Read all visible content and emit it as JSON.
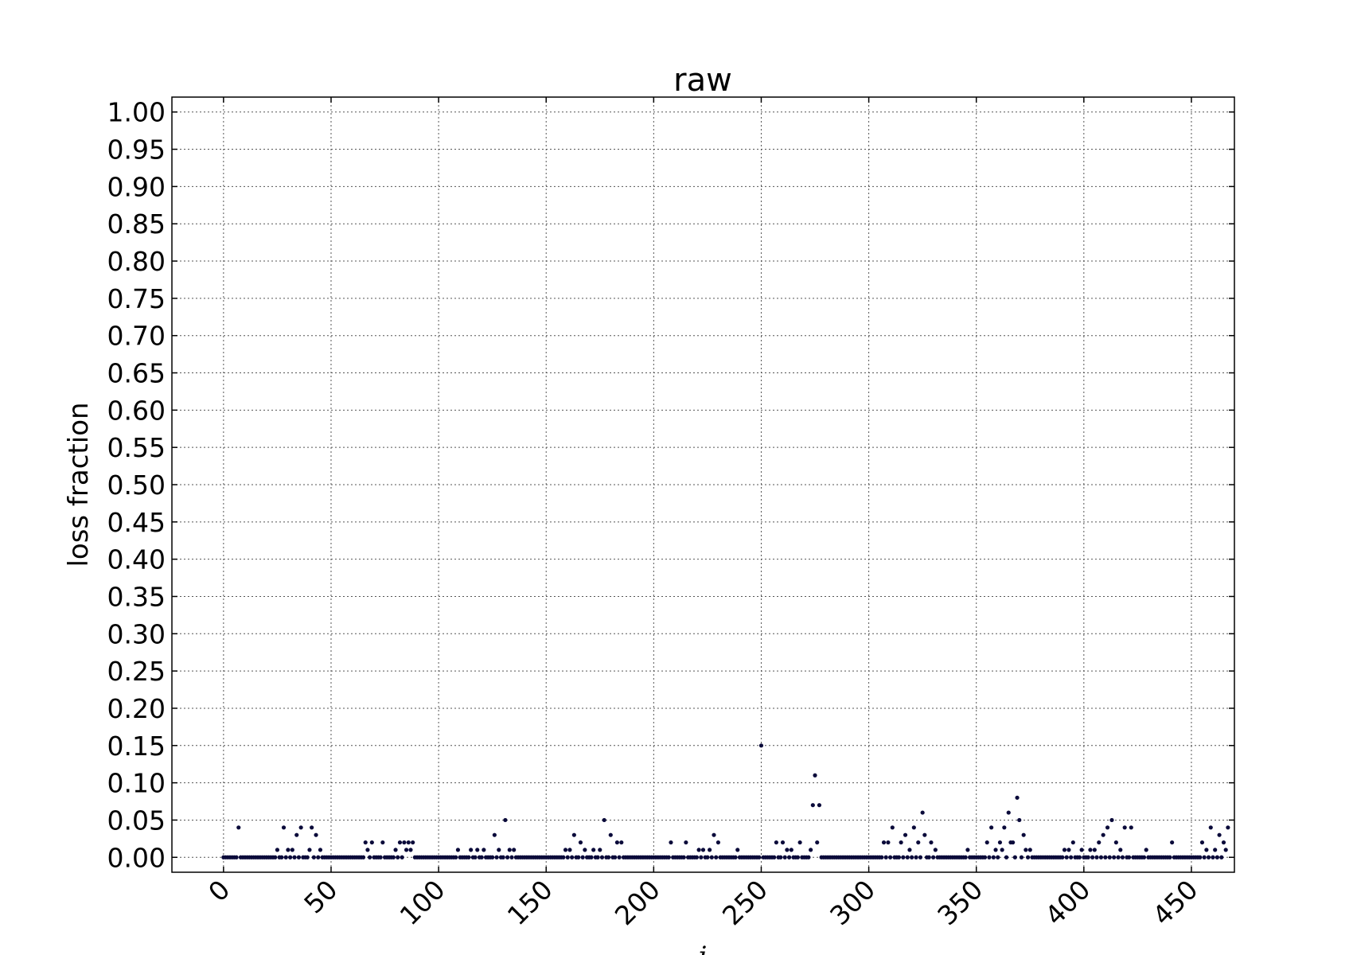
{
  "chart_data": {
    "type": "scatter",
    "title": "raw",
    "xlabel": "i",
    "ylabel": "loss fraction",
    "xlim": [
      -24,
      470
    ],
    "ylim": [
      -0.02,
      1.02
    ],
    "xticks": [
      0,
      50,
      100,
      150,
      200,
      250,
      300,
      350,
      400,
      450
    ],
    "xtick_labels": [
      "0",
      "50",
      "100",
      "150",
      "200",
      "250",
      "300",
      "350",
      "400",
      "450"
    ],
    "yticks": [
      0,
      0.05,
      0.1,
      0.15,
      0.2,
      0.25,
      0.3,
      0.35,
      0.4,
      0.45,
      0.5,
      0.55,
      0.6,
      0.65,
      0.7,
      0.75,
      0.8,
      0.85,
      0.9,
      0.95,
      1.0
    ],
    "ytick_labels": [
      "0.00",
      "0.05",
      "0.10",
      "0.15",
      "0.20",
      "0.25",
      "0.30",
      "0.35",
      "0.40",
      "0.45",
      "0.50",
      "0.55",
      "0.60",
      "0.65",
      "0.70",
      "0.75",
      "0.80",
      "0.85",
      "0.90",
      "0.95",
      "1.00"
    ],
    "grid": true,
    "marker_color": "#0a0a3a",
    "n_points": 468,
    "nonzero_points": [
      [
        7,
        0.04
      ],
      [
        25,
        0.01
      ],
      [
        28,
        0.04
      ],
      [
        30,
        0.01
      ],
      [
        32,
        0.01
      ],
      [
        34,
        0.03
      ],
      [
        36,
        0.04
      ],
      [
        40,
        0.01
      ],
      [
        41,
        0.04
      ],
      [
        43,
        0.03
      ],
      [
        45,
        0.01
      ],
      [
        66,
        0.02
      ],
      [
        67,
        0.01
      ],
      [
        69,
        0.02
      ],
      [
        74,
        0.02
      ],
      [
        80,
        0.01
      ],
      [
        82,
        0.02
      ],
      [
        84,
        0.02
      ],
      [
        86,
        0.02
      ],
      [
        88,
        0.02
      ],
      [
        85,
        0.01
      ],
      [
        87,
        0.01
      ],
      [
        109,
        0.01
      ],
      [
        115,
        0.01
      ],
      [
        118,
        0.01
      ],
      [
        121,
        0.01
      ],
      [
        126,
        0.03
      ],
      [
        128,
        0.01
      ],
      [
        131,
        0.05
      ],
      [
        133,
        0.01
      ],
      [
        135,
        0.01
      ],
      [
        159,
        0.01
      ],
      [
        161,
        0.01
      ],
      [
        163,
        0.03
      ],
      [
        166,
        0.02
      ],
      [
        168,
        0.01
      ],
      [
        172,
        0.01
      ],
      [
        175,
        0.01
      ],
      [
        177,
        0.05
      ],
      [
        180,
        0.03
      ],
      [
        183,
        0.02
      ],
      [
        185,
        0.02
      ],
      [
        208,
        0.02
      ],
      [
        215,
        0.02
      ],
      [
        221,
        0.01
      ],
      [
        223,
        0.01
      ],
      [
        226,
        0.01
      ],
      [
        228,
        0.03
      ],
      [
        230,
        0.02
      ],
      [
        239,
        0.01
      ],
      [
        250,
        0.15
      ],
      [
        257,
        0.02
      ],
      [
        260,
        0.02
      ],
      [
        262,
        0.01
      ],
      [
        264,
        0.01
      ],
      [
        268,
        0.02
      ],
      [
        273,
        0.01
      ],
      [
        274,
        0.07
      ],
      [
        275,
        0.11
      ],
      [
        277,
        0.07
      ],
      [
        276,
        0.02
      ],
      [
        307,
        0.02
      ],
      [
        309,
        0.02
      ],
      [
        311,
        0.04
      ],
      [
        315,
        0.02
      ],
      [
        317,
        0.03
      ],
      [
        319,
        0.01
      ],
      [
        321,
        0.04
      ],
      [
        323,
        0.02
      ],
      [
        325,
        0.06
      ],
      [
        326,
        0.03
      ],
      [
        329,
        0.02
      ],
      [
        331,
        0.01
      ],
      [
        346,
        0.01
      ],
      [
        355,
        0.02
      ],
      [
        357,
        0.04
      ],
      [
        359,
        0.01
      ],
      [
        361,
        0.02
      ],
      [
        363,
        0.04
      ],
      [
        365,
        0.06
      ],
      [
        367,
        0.02
      ],
      [
        369,
        0.08
      ],
      [
        370,
        0.05
      ],
      [
        372,
        0.03
      ],
      [
        373,
        0.01
      ],
      [
        375,
        0.01
      ],
      [
        362,
        0.01
      ],
      [
        366,
        0.02
      ],
      [
        391,
        0.01
      ],
      [
        393,
        0.01
      ],
      [
        395,
        0.02
      ],
      [
        399,
        0.01
      ],
      [
        403,
        0.01
      ],
      [
        405,
        0.01
      ],
      [
        407,
        0.02
      ],
      [
        409,
        0.03
      ],
      [
        411,
        0.04
      ],
      [
        413,
        0.05
      ],
      [
        415,
        0.02
      ],
      [
        417,
        0.01
      ],
      [
        419,
        0.04
      ],
      [
        422,
        0.04
      ],
      [
        429,
        0.01
      ],
      [
        441,
        0.02
      ],
      [
        455,
        0.02
      ],
      [
        457,
        0.01
      ],
      [
        459,
        0.04
      ],
      [
        461,
        0.01
      ],
      [
        463,
        0.03
      ],
      [
        465,
        0.02
      ],
      [
        467,
        0.04
      ],
      [
        466,
        0.01
      ]
    ]
  }
}
